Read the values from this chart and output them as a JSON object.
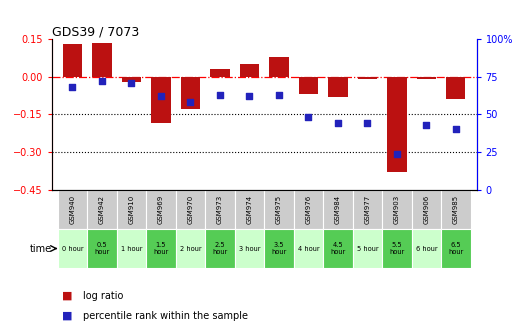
{
  "title": "GDS39 / 7073",
  "samples": [
    "GSM940",
    "GSM942",
    "GSM910",
    "GSM969",
    "GSM970",
    "GSM973",
    "GSM974",
    "GSM975",
    "GSM976",
    "GSM984",
    "GSM977",
    "GSM903",
    "GSM906",
    "GSM985"
  ],
  "time_labels": [
    "0 hour",
    "0.5\nhour",
    "1 hour",
    "1.5\nhour",
    "2 hour",
    "2.5\nhour",
    "3 hour",
    "3.5\nhour",
    "4 hour",
    "4.5\nhour",
    "5 hour",
    "5.5\nhour",
    "6 hour",
    "6.5\nhour"
  ],
  "log_ratio": [
    0.13,
    0.135,
    -0.02,
    -0.185,
    -0.13,
    0.03,
    0.05,
    0.08,
    -0.07,
    -0.08,
    -0.01,
    -0.38,
    -0.01,
    -0.09
  ],
  "percentile": [
    68,
    72,
    71,
    62,
    58,
    63,
    62,
    63,
    48,
    44,
    44,
    24,
    43,
    40
  ],
  "ylim_left": [
    -0.45,
    0.15
  ],
  "ylim_right": [
    0,
    100
  ],
  "yticks_left": [
    0.15,
    0,
    -0.15,
    -0.3,
    -0.45
  ],
  "yticks_right": [
    100,
    75,
    50,
    25,
    0
  ],
  "bar_color": "#bb1111",
  "dot_color": "#2222bb",
  "odd_time_color": "#ccffcc",
  "even_time_color": "#55cc55",
  "header_bg": "#cccccc"
}
